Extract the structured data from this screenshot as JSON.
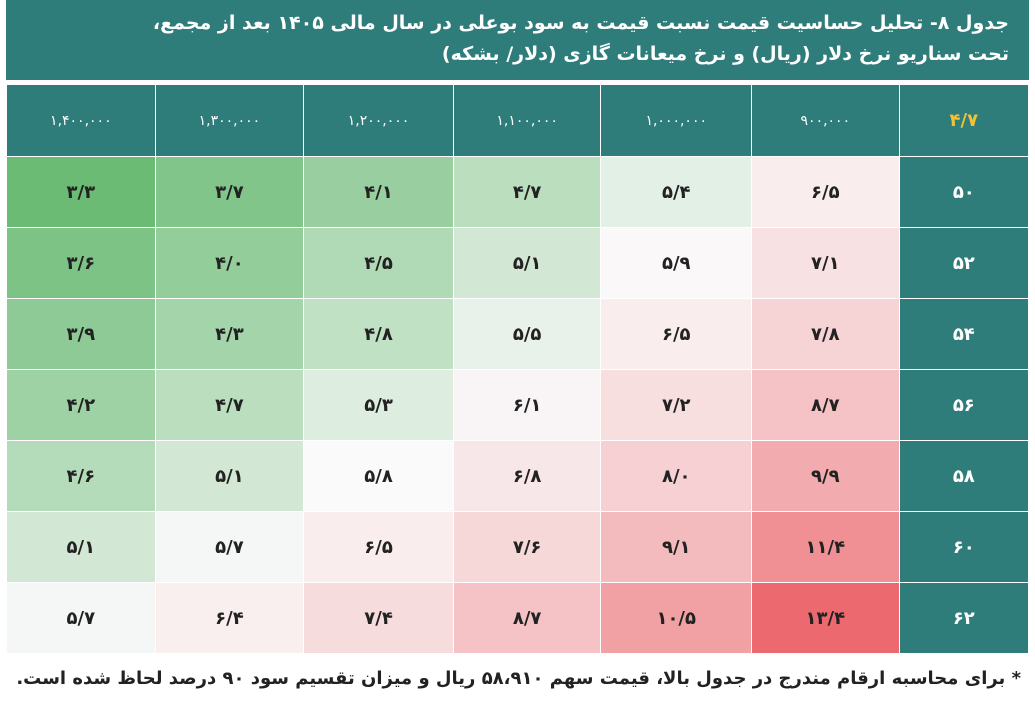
{
  "title": {
    "line1": "جدول ۸- تحلیل حساسیت قیمت نسبت قیمت به سود بوعلی در سال مالی ۱۴۰۵ بعد از مجمع،",
    "line2": "تحت سناریو نرخ دلار (ریال) و نرخ میعانات گازی (دلار/ بشکه)"
  },
  "footnote": "* برای محاسبه ارقام مندرج در جدول بالا، قیمت سهم ۵۸،۹۱۰ ریال و میزان تقسیم سود ۹۰ درصد لحاظ شده است.",
  "colors": {
    "header_bg": "#2f7d7a",
    "corner_text": "#f1c232",
    "low": "#6bbb75",
    "mid": "#fafafa",
    "high": "#ec6a6f"
  },
  "chart_data": {
    "type": "heatmap",
    "corner_label": "۴/۷",
    "columns": [
      "۹۰۰,۰۰۰",
      "۱,۰۰۰,۰۰۰",
      "۱,۱۰۰,۰۰۰",
      "۱,۲۰۰,۰۰۰",
      "۱,۳۰۰,۰۰۰",
      "۱,۴۰۰,۰۰۰"
    ],
    "rows": [
      {
        "label": "۵۰",
        "cells": [
          "۶/۵",
          "۵/۴",
          "۴/۷",
          "۴/۱",
          "۳/۷",
          "۳/۳"
        ],
        "values": [
          6.5,
          5.4,
          4.7,
          4.1,
          3.7,
          3.3
        ]
      },
      {
        "label": "۵۲",
        "cells": [
          "۷/۱",
          "۵/۹",
          "۵/۱",
          "۴/۵",
          "۴/۰",
          "۳/۶"
        ],
        "values": [
          7.1,
          5.9,
          5.1,
          4.5,
          4.0,
          3.6
        ]
      },
      {
        "label": "۵۴",
        "cells": [
          "۷/۸",
          "۶/۵",
          "۵/۵",
          "۴/۸",
          "۴/۳",
          "۳/۹"
        ],
        "values": [
          7.8,
          6.5,
          5.5,
          4.8,
          4.3,
          3.9
        ]
      },
      {
        "label": "۵۶",
        "cells": [
          "۸/۷",
          "۷/۲",
          "۶/۱",
          "۵/۳",
          "۴/۷",
          "۴/۲"
        ],
        "values": [
          8.7,
          7.2,
          6.1,
          5.3,
          4.7,
          4.2
        ]
      },
      {
        "label": "۵۸",
        "cells": [
          "۹/۹",
          "۸/۰",
          "۶/۸",
          "۵/۸",
          "۵/۱",
          "۴/۶"
        ],
        "values": [
          9.9,
          8.0,
          6.8,
          5.8,
          5.1,
          4.6
        ]
      },
      {
        "label": "۶۰",
        "cells": [
          "۱۱/۴",
          "۹/۱",
          "۷/۶",
          "۶/۵",
          "۵/۷",
          "۵/۱"
        ],
        "values": [
          11.4,
          9.1,
          7.6,
          6.5,
          5.7,
          5.1
        ]
      },
      {
        "label": "۶۲",
        "cells": [
          "۱۳/۴",
          "۱۰/۵",
          "۸/۷",
          "۷/۴",
          "۶/۴",
          "۵/۷"
        ],
        "values": [
          13.4,
          10.5,
          8.7,
          7.4,
          6.4,
          5.7
        ]
      }
    ]
  }
}
